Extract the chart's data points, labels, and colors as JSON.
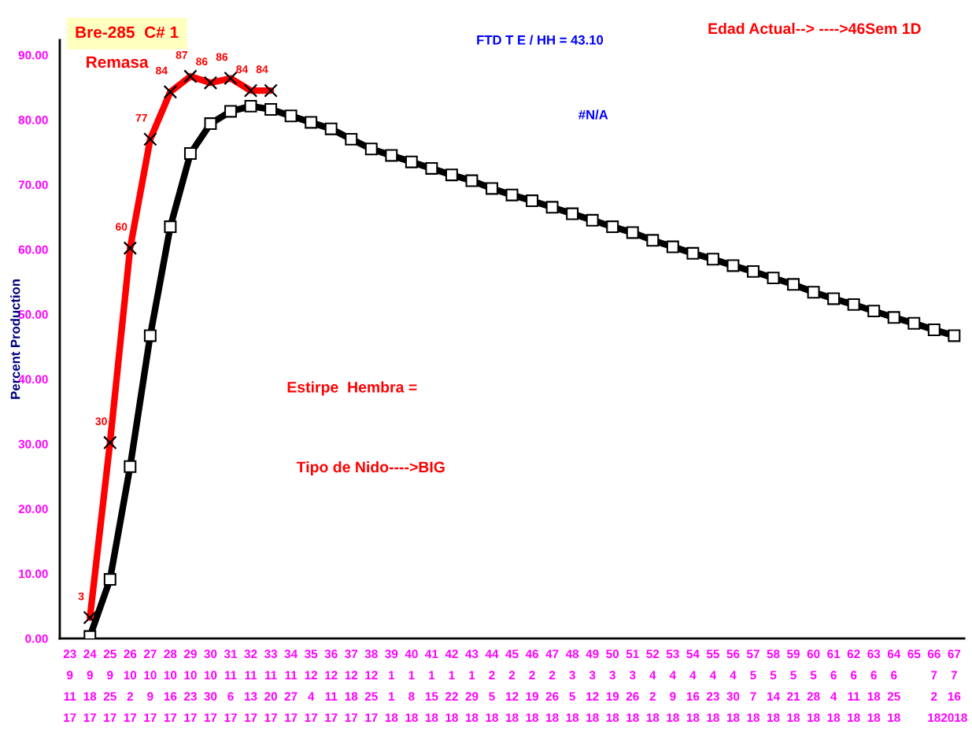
{
  "chart_data": {
    "type": "line",
    "categories": [
      "23\n9\n11\n17",
      "24\n9\n18\n17",
      "25\n9\n25\n17",
      "26\n10\n2\n17",
      "27\n10\n9\n17",
      "28\n10\n16\n17",
      "29\n10\n23\n17",
      "30\n10\n30\n17",
      "31\n11\n6\n17",
      "32\n11\n13\n17",
      "33\n11\n20\n17",
      "34\n11\n27\n17",
      "35\n12\n4\n17",
      "36\n12\n11\n17",
      "37\n12\n18\n17",
      "38\n12\n25\n17",
      "39\n1\n1\n18",
      "40\n1\n8\n18",
      "41\n1\n15\n18",
      "42\n1\n22\n18",
      "43\n1\n29\n18",
      "44\n2\n5\n18",
      "45\n2\n12\n18",
      "46\n2\n19\n18",
      "47\n2\n26\n18",
      "48\n3\n5\n18",
      "49\n3\n12\n18",
      "50\n3\n19\n18",
      "51\n3\n26\n18",
      "52\n4\n2\n18",
      "53\n4\n9\n18",
      "54\n4\n16\n18",
      "55\n4\n23\n18",
      "56\n4\n30\n18",
      "57\n5\n7\n18",
      "58\n5\n14\n18",
      "59\n5\n21\n18",
      "60\n5\n28\n18",
      "61\n6\n4\n18",
      "62\n6\n11\n18",
      "63\n6\n18\n18",
      "64\n6\n25\n18",
      "65\n\n\n",
      "66\n7\n2\n18",
      "67\n7\n16\n2018"
    ],
    "series": [
      {
        "color": "#000000",
        "marker": "square",
        "values": [
          null,
          0.3,
          9.1,
          26.5,
          46.7,
          63.5,
          74.8,
          79.4,
          81.3,
          82.1,
          81.6,
          80.6,
          79.6,
          78.6,
          77.0,
          75.5,
          74.5,
          73.5,
          72.5,
          71.5,
          70.6,
          69.4,
          68.4,
          67.5,
          66.5,
          65.5,
          64.5,
          63.5,
          62.6,
          61.4,
          60.4,
          59.4,
          58.5,
          57.5,
          56.6,
          55.6,
          54.6,
          53.4,
          52.4,
          51.5,
          50.5,
          49.5,
          48.6,
          47.6,
          46.7
        ]
      },
      {
        "color": "#ff0000",
        "marker": "cross",
        "values": [
          null,
          3.2,
          30.2,
          60.2,
          77.0,
          84.3,
          86.7,
          85.7,
          86.4,
          84.5,
          84.5,
          null,
          null,
          null,
          null,
          null,
          null,
          null,
          null,
          null,
          null,
          null,
          null,
          null,
          null,
          null,
          null,
          null,
          null,
          null,
          null,
          null,
          null,
          null,
          null,
          null,
          null,
          null,
          null,
          null,
          null,
          null,
          null,
          null,
          null
        ],
        "value_labels": [
          null,
          "3",
          "30",
          "60",
          "77",
          "84",
          "87",
          "86",
          "86",
          "84",
          "84",
          null,
          null,
          null,
          null,
          null,
          null,
          null,
          null,
          null,
          null,
          null,
          null,
          null,
          null,
          null,
          null,
          null,
          null,
          null,
          null,
          null,
          null,
          null,
          null,
          null,
          null,
          null,
          null,
          null,
          null,
          null,
          null,
          null,
          null
        ]
      }
    ],
    "ylabel": "Percent Production",
    "ylim": [
      0,
      92.3
    ],
    "yticks": [
      {
        "value": 0,
        "label": "0.00"
      },
      {
        "value": 10,
        "label": "10.00"
      },
      {
        "value": 20,
        "label": "20.00"
      },
      {
        "value": 30,
        "label": "30.00"
      },
      {
        "value": 40,
        "label": "40.00"
      },
      {
        "value": 50,
        "label": "50.00"
      },
      {
        "value": 60,
        "label": "60.00"
      },
      {
        "value": 70,
        "label": "70.00"
      },
      {
        "value": 80,
        "label": "80.00"
      },
      {
        "value": 90,
        "label": "90.00"
      }
    ],
    "annotations": [
      "Bre-285  C# 1",
      "Remasa",
      "FTD T E / HH = 43.10",
      "#N/A",
      "Edad Actual--> ---->46Sem 1D",
      "Estirpe  Hembra =",
      "Tipo de Nido---->BIG"
    ],
    "grid": false,
    "legend": false,
    "line_style": "solid"
  }
}
